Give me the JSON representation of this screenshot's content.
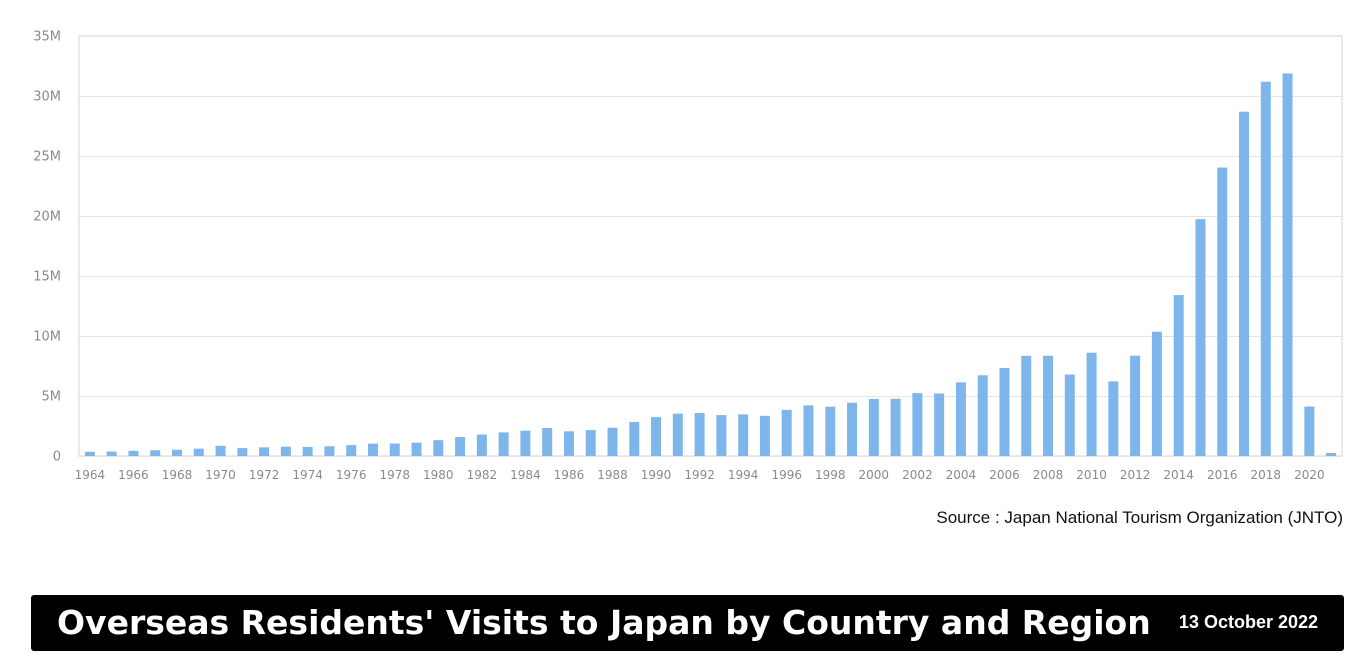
{
  "chart_data": {
    "type": "bar",
    "title": "",
    "xlabel": "",
    "ylabel": "",
    "ylim": [
      0,
      35000000
    ],
    "grid": true,
    "bar_color": "#7EB6EC",
    "y_ticks": [
      {
        "value": 0,
        "label": "0"
      },
      {
        "value": 5000000,
        "label": "5M"
      },
      {
        "value": 10000000,
        "label": "10M"
      },
      {
        "value": 15000000,
        "label": "15M"
      },
      {
        "value": 20000000,
        "label": "20M"
      },
      {
        "value": 25000000,
        "label": "25M"
      },
      {
        "value": 30000000,
        "label": "30M"
      },
      {
        "value": 35000000,
        "label": "35M"
      }
    ],
    "x_tick_labels": [
      "1964",
      "1966",
      "1968",
      "1970",
      "1972",
      "1974",
      "1976",
      "1978",
      "1980",
      "1982",
      "1984",
      "1986",
      "1988",
      "1990",
      "1992",
      "1994",
      "1996",
      "1998",
      "2000",
      "2002",
      "2004",
      "2006",
      "2008",
      "2010",
      "2012",
      "2014",
      "2016",
      "2018",
      "2020"
    ],
    "categories": [
      "1964",
      "1965",
      "1966",
      "1967",
      "1968",
      "1969",
      "1970",
      "1971",
      "1972",
      "1973",
      "1974",
      "1975",
      "1976",
      "1977",
      "1978",
      "1979",
      "1980",
      "1981",
      "1982",
      "1983",
      "1984",
      "1985",
      "1986",
      "1987",
      "1988",
      "1989",
      "1990",
      "1991",
      "1992",
      "1993",
      "1994",
      "1995",
      "1996",
      "1997",
      "1998",
      "1999",
      "2000",
      "2001",
      "2002",
      "2003",
      "2004",
      "2005",
      "2006",
      "2007",
      "2008",
      "2009",
      "2010",
      "2011",
      "2012",
      "2013",
      "2014",
      "2015",
      "2016",
      "2017",
      "2018",
      "2019",
      "2020",
      "2021"
    ],
    "values": [
      350000,
      370000,
      430000,
      480000,
      520000,
      610000,
      850000,
      660000,
      720000,
      780000,
      760000,
      810000,
      910000,
      1030000,
      1040000,
      1110000,
      1320000,
      1580000,
      1790000,
      1970000,
      2110000,
      2330000,
      2060000,
      2160000,
      2360000,
      2840000,
      3240000,
      3530000,
      3580000,
      3410000,
      3470000,
      3350000,
      3840000,
      4220000,
      4110000,
      4440000,
      4760000,
      4770000,
      5240000,
      5210000,
      6140000,
      6730000,
      7330000,
      8350000,
      8350000,
      6790000,
      8610000,
      6220000,
      8360000,
      10360000,
      13410000,
      19740000,
      24040000,
      28690000,
      31190000,
      31880000,
      4120000,
      250000
    ]
  },
  "source": "Source : Japan National Tourism Organization (JNTO)",
  "banner": {
    "title": "Overseas Residents' Visits to Japan by Country and Region",
    "date": "13 October 2022"
  }
}
